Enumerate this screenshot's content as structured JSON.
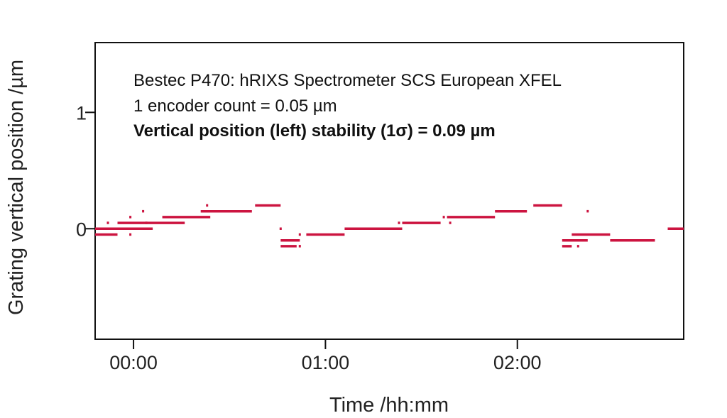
{
  "chart_data": {
    "type": "line",
    "title": "",
    "xlabel": "Time /hh:mm",
    "ylabel": "Grating vertical position /µm",
    "x_unit": "hh:mm",
    "xlim": [
      "-00:12",
      "02:52"
    ],
    "ylim": [
      -0.95,
      1.6
    ],
    "xticks": [
      {
        "value": "00:00",
        "label": "00:00"
      },
      {
        "value": "01:00",
        "label": "01:00"
      },
      {
        "value": "02:00",
        "label": "02:00"
      }
    ],
    "yticks": [
      {
        "value": 0,
        "label": "0"
      },
      {
        "value": 1,
        "label": "1"
      }
    ],
    "grid": false,
    "legend": "none",
    "annotations": [
      "Bestec P470: hRIXS Spectrometer SCS European XFEL",
      "1 encoder count = 0.05 µm",
      "Vertical position (left) stability (1σ) = 0.09 µm"
    ],
    "series_color": "#cc1440",
    "series": [
      {
        "segments": [
          {
            "x_start": "-00:12",
            "x_end": "-00:05",
            "y": -0.05
          },
          {
            "x_start": "-00:12",
            "x_end": "00:06",
            "y": 0.0
          },
          {
            "x_start": "-00:05",
            "x_end": "00:16",
            "y": 0.05
          },
          {
            "x_start": "00:09",
            "x_end": "00:24",
            "y": 0.1
          },
          {
            "x_start": "00:21",
            "x_end": "00:37",
            "y": 0.15
          },
          {
            "x_start": "00:38",
            "x_end": "00:46",
            "y": 0.2
          },
          {
            "x_start": "00:46",
            "x_end": "00:52",
            "y": -0.1
          },
          {
            "x_start": "00:46",
            "x_end": "00:51",
            "y": -0.15
          },
          {
            "x_start": "00:54",
            "x_end": "01:06",
            "y": -0.05
          },
          {
            "x_start": "01:06",
            "x_end": "01:17",
            "y": 0.0
          },
          {
            "x_start": "01:16",
            "x_end": "01:24",
            "y": 0.0
          },
          {
            "x_start": "01:24",
            "x_end": "01:36",
            "y": 0.05
          },
          {
            "x_start": "01:38",
            "x_end": "01:53",
            "y": 0.1
          },
          {
            "x_start": "01:53",
            "x_end": "02:03",
            "y": 0.15
          },
          {
            "x_start": "02:05",
            "x_end": "02:14",
            "y": 0.2
          },
          {
            "x_start": "02:14",
            "x_end": "02:22",
            "y": -0.1
          },
          {
            "x_start": "02:14",
            "x_end": "02:17",
            "y": -0.15
          },
          {
            "x_start": "02:17",
            "x_end": "02:29",
            "y": -0.05
          },
          {
            "x_start": "02:29",
            "x_end": "02:43",
            "y": -0.1
          },
          {
            "x_start": "02:47",
            "x_end": "02:52",
            "y": 0.0
          }
        ],
        "points": [
          {
            "x": "-00:08",
            "y": 0.05
          },
          {
            "x": "-00:01",
            "y": 0.1
          },
          {
            "x": "-00:01",
            "y": -0.05
          },
          {
            "x": "00:03",
            "y": 0.15
          },
          {
            "x": "00:04",
            "y": 0.05
          },
          {
            "x": "00:23",
            "y": 0.2
          },
          {
            "x": "00:46",
            "y": 0.0
          },
          {
            "x": "00:52",
            "y": -0.15
          },
          {
            "x": "00:52",
            "y": -0.05
          },
          {
            "x": "01:23",
            "y": 0.05
          },
          {
            "x": "01:37",
            "y": 0.1
          },
          {
            "x": "01:39",
            "y": 0.05
          },
          {
            "x": "02:22",
            "y": 0.15
          },
          {
            "x": "02:19",
            "y": -0.15
          }
        ]
      }
    ]
  }
}
